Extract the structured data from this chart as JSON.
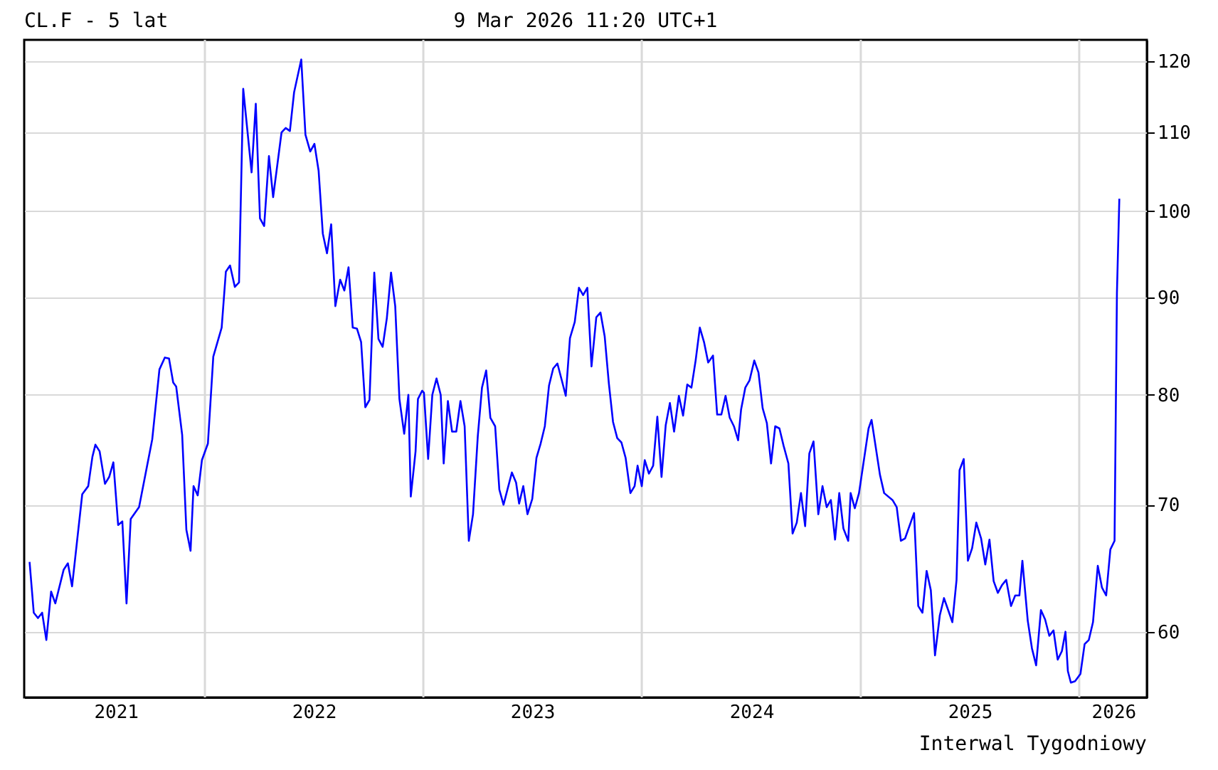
{
  "chart_data": {
    "type": "line",
    "title": "CL.F - 5 lat",
    "subtitle": "9 Mar 2026 11:20 UTC+1",
    "annotations": [
      "Interwal Tygodniowy"
    ],
    "x": [
      "2021-03-14",
      "2021-03-21",
      "2021-03-28",
      "2021-04-04",
      "2021-04-11",
      "2021-04-19",
      "2021-04-26",
      "2021-05-10",
      "2021-05-17",
      "2021-05-24",
      "2021-06-10",
      "2021-06-20",
      "2021-06-27",
      "2021-07-02",
      "2021-07-09",
      "2021-07-18",
      "2021-07-25",
      "2021-08-01",
      "2021-08-09",
      "2021-08-16",
      "2021-08-23",
      "2021-08-30",
      "2021-09-13",
      "2021-10-05",
      "2021-10-17",
      "2021-10-26",
      "2021-11-02",
      "2021-11-09",
      "2021-11-14",
      "2021-11-24",
      "2021-12-01",
      "2021-12-08",
      "2021-12-13",
      "2021-12-20",
      "2021-12-27",
      "2022-01-06",
      "2022-01-15",
      "2022-01-29",
      "2022-02-05",
      "2022-02-12",
      "2022-02-20",
      "2022-02-27",
      "2022-03-06",
      "2022-03-20",
      "2022-03-27",
      "2022-04-03",
      "2022-04-10",
      "2022-04-18",
      "2022-04-25",
      "2022-05-09",
      "2022-05-16",
      "2022-05-23",
      "2022-05-30",
      "2022-06-11",
      "2022-06-18",
      "2022-06-26",
      "2022-07-03",
      "2022-07-10",
      "2022-07-17",
      "2022-07-24",
      "2022-07-31",
      "2022-08-07",
      "2022-08-15",
      "2022-08-22",
      "2022-08-29",
      "2022-09-05",
      "2022-09-12",
      "2022-09-19",
      "2022-09-26",
      "2022-10-03",
      "2022-10-11",
      "2022-10-18",
      "2022-10-25",
      "2022-11-01",
      "2022-11-08",
      "2022-11-15",
      "2022-11-22",
      "2022-11-30",
      "2022-12-07",
      "2022-12-11",
      "2022-12-19",
      "2022-12-23",
      "2022-12-30",
      "2023-01-02",
      "2023-01-09",
      "2023-01-16",
      "2023-01-23",
      "2023-01-30",
      "2023-02-04",
      "2023-02-11",
      "2023-02-18",
      "2023-02-25",
      "2023-03-04",
      "2023-03-11",
      "2023-03-18",
      "2023-03-25",
      "2023-04-02",
      "2023-04-09",
      "2023-04-16",
      "2023-04-23",
      "2023-05-01",
      "2023-05-08",
      "2023-05-15",
      "2023-05-22",
      "2023-05-29",
      "2023-06-05",
      "2023-06-10",
      "2023-06-17",
      "2023-06-24",
      "2023-07-02",
      "2023-07-09",
      "2023-07-16",
      "2023-07-23",
      "2023-07-30",
      "2023-08-06",
      "2023-08-13",
      "2023-08-20",
      "2023-08-27",
      "2023-09-03",
      "2023-09-11",
      "2023-09-18",
      "2023-09-25",
      "2023-10-02",
      "2023-10-09",
      "2023-10-17",
      "2023-10-24",
      "2023-10-31",
      "2023-11-07",
      "2023-11-14",
      "2023-11-21",
      "2023-11-28",
      "2023-12-05",
      "2023-12-13",
      "2023-12-20",
      "2023-12-25",
      "2024-01-01",
      "2024-01-06",
      "2024-01-13",
      "2024-01-20",
      "2024-01-27",
      "2024-02-03",
      "2024-02-10",
      "2024-02-17",
      "2024-02-24",
      "2024-03-03",
      "2024-03-10",
      "2024-03-17",
      "2024-03-24",
      "2024-03-31",
      "2024-04-07",
      "2024-04-14",
      "2024-04-21",
      "2024-04-29",
      "2024-05-06",
      "2024-05-13",
      "2024-05-20",
      "2024-05-27",
      "2024-06-03",
      "2024-06-10",
      "2024-06-15",
      "2024-06-22",
      "2024-06-29",
      "2024-07-07",
      "2024-07-14",
      "2024-07-21",
      "2024-07-28",
      "2024-08-04",
      "2024-08-11",
      "2024-08-18",
      "2024-08-25",
      "2024-09-02",
      "2024-09-09",
      "2024-09-16",
      "2024-09-23",
      "2024-09-30",
      "2024-10-07",
      "2024-10-14",
      "2024-10-22",
      "2024-10-29",
      "2024-11-05",
      "2024-11-12",
      "2024-11-19",
      "2024-11-26",
      "2024-12-03",
      "2024-12-11",
      "2024-12-15",
      "2024-12-22",
      "2024-12-29",
      "2025-01-07",
      "2025-01-14",
      "2025-01-19",
      "2025-02-02",
      "2025-02-09",
      "2025-02-23",
      "2025-03-02",
      "2025-03-09",
      "2025-03-16",
      "2025-03-31",
      "2025-04-07",
      "2025-04-14",
      "2025-04-21",
      "2025-04-28",
      "2025-05-05",
      "2025-05-13",
      "2025-05-20",
      "2025-05-27",
      "2025-06-03",
      "2025-06-10",
      "2025-06-15",
      "2025-06-22",
      "2025-06-29",
      "2025-07-06",
      "2025-07-13",
      "2025-07-21",
      "2025-07-28",
      "2025-08-04",
      "2025-08-11",
      "2025-08-18",
      "2025-08-25",
      "2025-09-01",
      "2025-09-09",
      "2025-09-16",
      "2025-09-23",
      "2025-09-28",
      "2025-10-07",
      "2025-10-14",
      "2025-10-21",
      "2025-10-29",
      "2025-11-05",
      "2025-11-12",
      "2025-11-19",
      "2025-11-26",
      "2025-12-03",
      "2025-12-09",
      "2025-12-13",
      "2025-12-18",
      "2025-12-25",
      "2026-01-03",
      "2026-01-10",
      "2026-01-17",
      "2026-01-24",
      "2026-02-01",
      "2026-02-08",
      "2026-02-15",
      "2026-02-22",
      "2026-03-01",
      "2026-03-05",
      "2026-03-09"
    ],
    "series": [
      {
        "color": "#0000ff",
        "values": [
          65.3,
          61.4,
          61.0,
          61.4,
          59.4,
          63.0,
          62.1,
          64.7,
          65.2,
          63.4,
          70.9,
          71.6,
          74.2,
          75.3,
          74.7,
          71.8,
          72.4,
          73.7,
          68.3,
          68.6,
          62.1,
          68.8,
          69.8,
          75.8,
          82.5,
          83.7,
          83.6,
          81.2,
          80.8,
          76.2,
          67.9,
          66.2,
          71.6,
          70.8,
          73.9,
          75.4,
          83.8,
          86.8,
          92.9,
          93.6,
          91.2,
          91.7,
          116,
          104.8,
          113.9,
          99.1,
          98.2,
          106.9,
          101.7,
          110,
          110.6,
          110.2,
          115.5,
          120.2,
          109.7,
          107.5,
          108.5,
          105,
          97.3,
          95,
          98.4,
          89.1,
          92,
          90.8,
          93.4,
          86.8,
          86.7,
          85.3,
          78.8,
          79.5,
          92.8,
          85.6,
          84.8,
          87.8,
          92.8,
          89.1,
          79.6,
          76.3,
          80,
          70.7,
          74.7,
          79.6,
          80.4,
          80.2,
          74,
          80,
          81.6,
          80,
          73.6,
          79.4,
          76.5,
          76.5,
          79.4,
          77,
          67,
          69.2,
          76.1,
          80.7,
          82.4,
          77.8,
          77,
          71.3,
          70,
          71.4,
          72.8,
          71.9,
          70.1,
          71.6,
          69.2,
          70.5,
          74.1,
          75.4,
          77,
          80.9,
          82.6,
          83.1,
          81.5,
          79.9,
          85.7,
          87.4,
          91.1,
          90.3,
          91.1,
          82.8,
          87.9,
          88.4,
          85.9,
          81.1,
          77.4,
          75.9,
          75.5,
          74.1,
          71,
          71.6,
          73.4,
          71.6,
          73.9,
          72.7,
          73.4,
          77.9,
          72.4,
          77.1,
          79.2,
          76.5,
          79.9,
          78,
          81,
          80.7,
          83.4,
          86.8,
          85.3,
          83.2,
          83.9,
          78.1,
          78.1,
          79.9,
          77.8,
          77,
          75.7,
          78.6,
          80.7,
          81.4,
          83.4,
          82.2,
          78.7,
          77.3,
          73.6,
          77,
          76.8,
          75.2,
          73.6,
          67.6,
          68.5,
          71,
          68.2,
          74.5,
          75.6,
          69.2,
          71.6,
          69.8,
          70.4,
          67.1,
          71,
          68,
          67,
          71,
          69.7,
          71,
          74.2,
          76.8,
          77.6,
          72.6,
          71,
          70.4,
          69.8,
          67,
          67.2,
          69.3,
          61.9,
          61.4,
          64.6,
          63.1,
          58.3,
          61.2,
          62.5,
          61.6,
          60.7,
          63.9,
          73,
          74,
          65.4,
          66.4,
          68.5,
          67.2,
          65.1,
          67.1,
          63.8,
          62.9,
          63.5,
          63.9,
          61.9,
          62.7,
          62.7,
          65.4,
          60.8,
          58.8,
          57.6,
          61.6,
          60.9,
          59.7,
          60.1,
          58,
          58.6,
          60,
          57.2,
          56.4,
          56.5,
          57,
          59.1,
          59.4,
          60.7,
          65,
          63.3,
          62.7,
          66.3,
          67,
          90.5,
          101.5
        ]
      }
    ],
    "xlim": [
      "2021-03-05",
      "2026-04-24"
    ],
    "xticks": [
      {
        "value": "2021-08-05",
        "label": "2021"
      },
      {
        "value": "2022-01-01",
        "label": null
      },
      {
        "value": "2022-07-02",
        "label": "2022"
      },
      {
        "value": "2023-01-01",
        "label": null
      },
      {
        "value": "2023-07-02",
        "label": "2023"
      },
      {
        "value": "2024-01-01",
        "label": null
      },
      {
        "value": "2024-07-02",
        "label": "2024"
      },
      {
        "value": "2025-01-01",
        "label": null
      },
      {
        "value": "2025-07-02",
        "label": "2025"
      },
      {
        "value": "2026-01-01",
        "label": null
      },
      {
        "value": "2026-02-27",
        "label": "2026"
      }
    ],
    "ylim": [
      55.4,
      123.1
    ],
    "yticks": [
      60,
      70,
      80,
      90,
      100,
      110,
      120
    ],
    "log": true,
    "grid": true,
    "marker": "none",
    "line_style": "solid"
  }
}
